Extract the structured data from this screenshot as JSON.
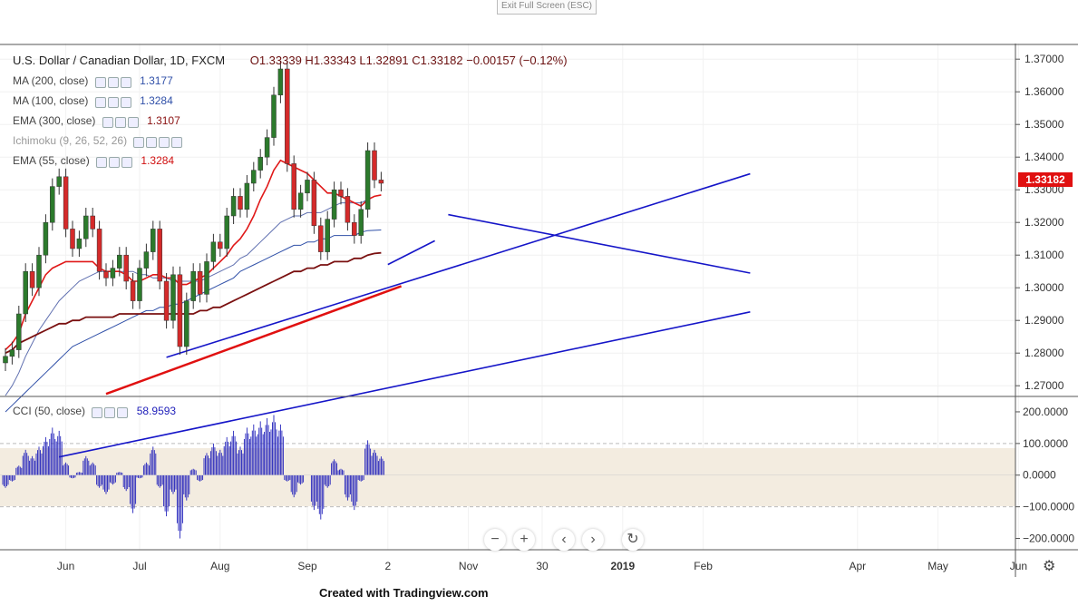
{
  "ui": {
    "exit_label": "Exit Full Screen (ESC)",
    "credit": "Created with Tradingview.com",
    "zoom_out": "−",
    "zoom_in": "+",
    "scroll_left": "‹",
    "scroll_right": "›",
    "reset_icon": "↻",
    "settings_icon": "⚙"
  },
  "title": {
    "symbol": "U.S. Dollar / Canadian Dollar, 1D, FXCM",
    "ohlc": "O1.33339  H1.33343  L1.32891  C1.33182  −0.00157 (−0.12%)"
  },
  "legends": [
    {
      "label": "MA (200, close)",
      "value": "1.3177",
      "color": "#3050a8"
    },
    {
      "label": "MA (100, close)",
      "value": "1.3284",
      "color": "#3050a8"
    },
    {
      "label": "EMA (300, close)",
      "value": "1.3107",
      "color": "#8a1010"
    },
    {
      "label": "Ichimoku (9, 26, 52, 26)",
      "value": "",
      "color": "#9aa"
    },
    {
      "label": "EMA (55, close)",
      "value": "1.3284",
      "color": "#d01010"
    }
  ],
  "cci_legend": {
    "label": "CCI (50, close)",
    "value": "58.9593"
  },
  "colors": {
    "up": "#2c7a2c",
    "down": "#d42a2a",
    "cci": "#2222bb",
    "band": "#f3ece0"
  },
  "chart_data": {
    "type": "candlestick",
    "y_ticks": [
      "1.37000",
      "1.36000",
      "1.35000",
      "1.34000",
      "1.33000",
      "1.32000",
      "1.31000",
      "1.30000",
      "1.29000",
      "1.28000",
      "1.27000"
    ],
    "last_price": "1.33182",
    "cci_ticks": [
      "200.0000",
      "100.0000",
      "0.0000",
      "−100.0000",
      "−200.0000"
    ],
    "x_labels": [
      "Jun",
      "Jul",
      "Aug",
      "Sep",
      "2",
      "Nov",
      "30",
      "2019",
      "Feb",
      "Apr",
      "May",
      "Jun"
    ],
    "x_label_weeks": [
      9,
      20,
      32,
      45,
      57,
      69,
      80,
      92,
      104,
      127,
      139,
      151
    ],
    "ylim": [
      1.267,
      1.372
    ],
    "weekly_closes": [
      1.279,
      1.281,
      1.292,
      1.305,
      1.3,
      1.31,
      1.32,
      1.331,
      1.334,
      1.318,
      1.312,
      1.315,
      1.322,
      1.318,
      1.305,
      1.303,
      1.306,
      1.31,
      1.302,
      1.296,
      1.306,
      1.311,
      1.318,
      1.302,
      1.29,
      1.304,
      1.282,
      1.296,
      1.305,
      1.298,
      1.308,
      1.314,
      1.312,
      1.322,
      1.328,
      1.324,
      1.332,
      1.336,
      1.34,
      1.346,
      1.359,
      1.367,
      1.338,
      1.324,
      1.329,
      1.333,
      1.319,
      1.311,
      1.321,
      1.33,
      1.328,
      1.32,
      1.316,
      1.324,
      1.342,
      1.333,
      1.332
    ],
    "ema55": [
      1.281,
      1.283,
      1.286,
      1.292,
      1.296,
      1.3,
      1.304,
      1.306,
      1.307,
      1.308,
      1.308,
      1.308,
      1.308,
      1.308,
      1.306,
      1.305,
      1.305,
      1.305,
      1.304,
      1.302,
      1.302,
      1.303,
      1.304,
      1.304,
      1.303,
      1.303,
      1.301,
      1.301,
      1.302,
      1.303,
      1.304,
      1.306,
      1.308,
      1.31,
      1.313,
      1.315,
      1.318,
      1.322,
      1.327,
      1.331,
      1.336,
      1.339,
      1.338,
      1.337,
      1.336,
      1.335,
      1.333,
      1.331,
      1.329,
      1.329,
      1.328,
      1.327,
      1.326,
      1.325,
      1.327,
      1.328,
      1.3284
    ],
    "ma100": [
      1.267,
      1.27,
      1.274,
      1.279,
      1.283,
      1.287,
      1.29,
      1.293,
      1.296,
      1.298,
      1.3,
      1.302,
      1.303,
      1.304,
      1.305,
      1.305,
      1.305,
      1.305,
      1.305,
      1.305,
      1.304,
      1.304,
      1.303,
      1.303,
      1.303,
      1.302,
      1.302,
      1.302,
      1.302,
      1.302,
      1.303,
      1.304,
      1.305,
      1.306,
      1.307,
      1.309,
      1.31,
      1.312,
      1.314,
      1.316,
      1.318,
      1.32,
      1.321,
      1.322,
      1.322,
      1.323,
      1.323,
      1.323,
      1.324,
      1.325,
      1.326,
      1.326,
      1.326,
      1.326,
      1.327,
      1.328,
      1.3284
    ],
    "ma200": [
      1.262,
      1.264,
      1.266,
      1.268,
      1.27,
      1.272,
      1.274,
      1.276,
      1.278,
      1.28,
      1.282,
      1.283,
      1.284,
      1.285,
      1.286,
      1.287,
      1.288,
      1.289,
      1.29,
      1.291,
      1.292,
      1.293,
      1.293,
      1.294,
      1.294,
      1.295,
      1.295,
      1.296,
      1.297,
      1.298,
      1.299,
      1.3,
      1.301,
      1.302,
      1.303,
      1.305,
      1.306,
      1.307,
      1.308,
      1.309,
      1.31,
      1.311,
      1.312,
      1.313,
      1.313,
      1.314,
      1.314,
      1.315,
      1.315,
      1.316,
      1.316,
      1.316,
      1.316,
      1.317,
      1.3175,
      1.3176,
      1.3177
    ],
    "ema300": [
      1.28,
      1.281,
      1.283,
      1.284,
      1.285,
      1.286,
      1.287,
      1.288,
      1.289,
      1.289,
      1.29,
      1.29,
      1.291,
      1.291,
      1.291,
      1.291,
      1.291,
      1.292,
      1.292,
      1.292,
      1.292,
      1.292,
      1.292,
      1.292,
      1.292,
      1.292,
      1.292,
      1.292,
      1.292,
      1.293,
      1.293,
      1.294,
      1.294,
      1.295,
      1.296,
      1.297,
      1.298,
      1.299,
      1.3,
      1.301,
      1.302,
      1.303,
      1.304,
      1.305,
      1.305,
      1.306,
      1.306,
      1.307,
      1.307,
      1.308,
      1.308,
      1.308,
      1.309,
      1.309,
      1.31,
      1.3105,
      1.3107
    ],
    "cci": [
      -40,
      -20,
      30,
      80,
      60,
      90,
      120,
      150,
      140,
      40,
      -10,
      10,
      60,
      40,
      -40,
      -60,
      -30,
      10,
      -50,
      -120,
      -10,
      40,
      90,
      -40,
      -130,
      -60,
      -200,
      -80,
      20,
      -20,
      70,
      100,
      80,
      120,
      140,
      90,
      150,
      160,
      170,
      180,
      190,
      160,
      -20,
      -70,
      -30,
      0,
      -110,
      -140,
      -40,
      50,
      20,
      -80,
      -110,
      -20,
      110,
      80,
      58.96
    ],
    "cci_ylim": [
      -230,
      240
    ],
    "trendlines": [
      {
        "color": "#1515c8",
        "from": [
          24,
          1.2787
        ],
        "to": [
          111,
          1.3349
        ]
      },
      {
        "color": "#1515c8",
        "from": [
          8,
          1.2482
        ],
        "to": [
          111,
          1.2926
        ]
      },
      {
        "color": "#1515c8",
        "from": [
          66,
          1.3224
        ],
        "to": [
          111,
          1.3045
        ]
      },
      {
        "color": "#1515c8",
        "from": [
          57,
          1.3071
        ],
        "to": [
          64,
          1.3144
        ]
      },
      {
        "color": "#e01010",
        "from": [
          15,
          1.2675
        ],
        "to": [
          59,
          1.3005
        ]
      }
    ]
  }
}
